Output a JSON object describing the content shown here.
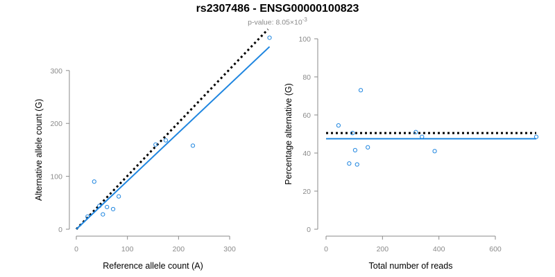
{
  "title": "rs2307486 - ENSG00000100823",
  "subtitle": {
    "prefix": "p-value: 8.05×10",
    "exponent": "-3"
  },
  "chart_data": [
    {
      "type": "scatter",
      "xlabel": "Reference allele count (A)",
      "ylabel": "Alternative allele count (G)",
      "xlim": [
        0,
        380
      ],
      "ylim": [
        0,
        360
      ],
      "xticks": [
        "0",
        "100",
        "200",
        "300"
      ],
      "yticks": [
        "0",
        "100",
        "200",
        "300"
      ],
      "grid": false,
      "points": [
        {
          "x": 22,
          "y": 24
        },
        {
          "x": 35,
          "y": 90
        },
        {
          "x": 45,
          "y": 44
        },
        {
          "x": 52,
          "y": 28
        },
        {
          "x": 60,
          "y": 42
        },
        {
          "x": 72,
          "y": 38
        },
        {
          "x": 83,
          "y": 62
        },
        {
          "x": 155,
          "y": 160
        },
        {
          "x": 175,
          "y": 168
        },
        {
          "x": 228,
          "y": 158
        },
        {
          "x": 378,
          "y": 362
        }
      ],
      "lines": [
        {
          "style": "dotted",
          "color": "#000000",
          "x": [
            0,
            375
          ],
          "y": [
            0,
            378
          ]
        },
        {
          "style": "solid",
          "color": "#1f86e0",
          "x": [
            0,
            378
          ],
          "y": [
            0,
            345
          ]
        }
      ],
      "point_color": "#1f86e0"
    },
    {
      "type": "scatter",
      "xlabel": "Total number of reads",
      "ylabel": "Percentage alternative (G)",
      "xlim": [
        0,
        750
      ],
      "ylim": [
        0,
        100
      ],
      "xticks": [
        "0",
        "200",
        "400",
        "600"
      ],
      "yticks": [
        "0",
        "20",
        "40",
        "60",
        "80",
        "100"
      ],
      "grid": false,
      "points": [
        {
          "x": 44,
          "y": 54.5
        },
        {
          "x": 82,
          "y": 34.5
        },
        {
          "x": 94,
          "y": 50.5
        },
        {
          "x": 103,
          "y": 41.5
        },
        {
          "x": 110,
          "y": 34
        },
        {
          "x": 123,
          "y": 73
        },
        {
          "x": 148,
          "y": 43
        },
        {
          "x": 318,
          "y": 51
        },
        {
          "x": 340,
          "y": 48.5
        },
        {
          "x": 385,
          "y": 41
        },
        {
          "x": 745,
          "y": 48.5
        }
      ],
      "lines": [
        {
          "style": "dotted",
          "color": "#000000",
          "x": [
            0,
            745
          ],
          "y": [
            50.5,
            50.5
          ]
        },
        {
          "style": "solid",
          "color": "#1f86e0",
          "x": [
            0,
            745
          ],
          "y": [
            47.5,
            47.5
          ]
        }
      ],
      "point_color": "#1f86e0"
    }
  ]
}
